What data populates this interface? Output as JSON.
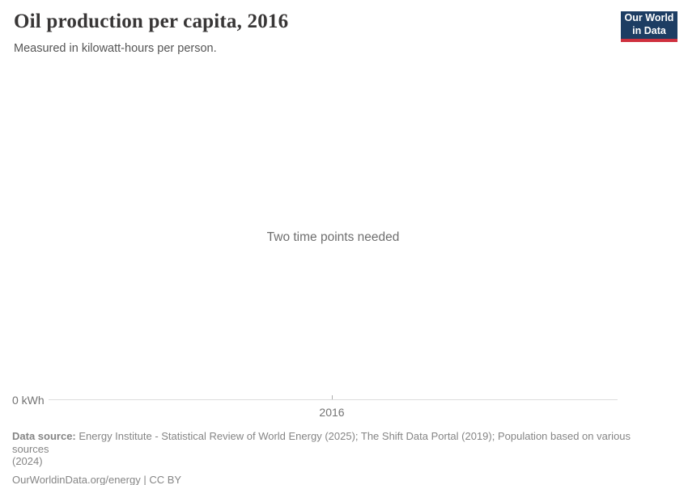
{
  "header": {
    "title": "Oil production per capita, 2016",
    "subtitle": "Measured in kilowatt-hours per person.",
    "logo": {
      "line1": "Our World",
      "line2": "in Data"
    }
  },
  "chart": {
    "empty_message": "Two time points needed",
    "y_axis_label": "0 kWh",
    "x_tick_label": "2016"
  },
  "chart_data": {
    "type": "line",
    "title": "Oil production per capita, 2016",
    "subtitle": "Measured in kilowatt-hours per person.",
    "x_ticks": [
      "2016"
    ],
    "y_ticks": [
      "0 kWh"
    ],
    "series": [],
    "annotations": [
      "Two time points needed"
    ],
    "note": "Empty chart state: no data series plotted; only a baseline axis at 0 kWh with a single year tick (2016).",
    "grid": false,
    "legend": false
  },
  "footer": {
    "data_source": {
      "label": "Data source:",
      "line1": "Energy Institute - Statistical Review of World Energy (2025); The Shift Data Portal (2019); Population based on various sources",
      "line2": "(2024)"
    },
    "credit": "OurWorldinData.org/energy | CC BY"
  },
  "colors": {
    "logo_bg": "#1d3d63",
    "logo_accent": "#cf303e",
    "title": "#383636",
    "subtitle": "#555555",
    "message": "#6e6e6e",
    "axis_label": "#737373",
    "axis_line": "#dddddd",
    "footer": "#858585"
  }
}
